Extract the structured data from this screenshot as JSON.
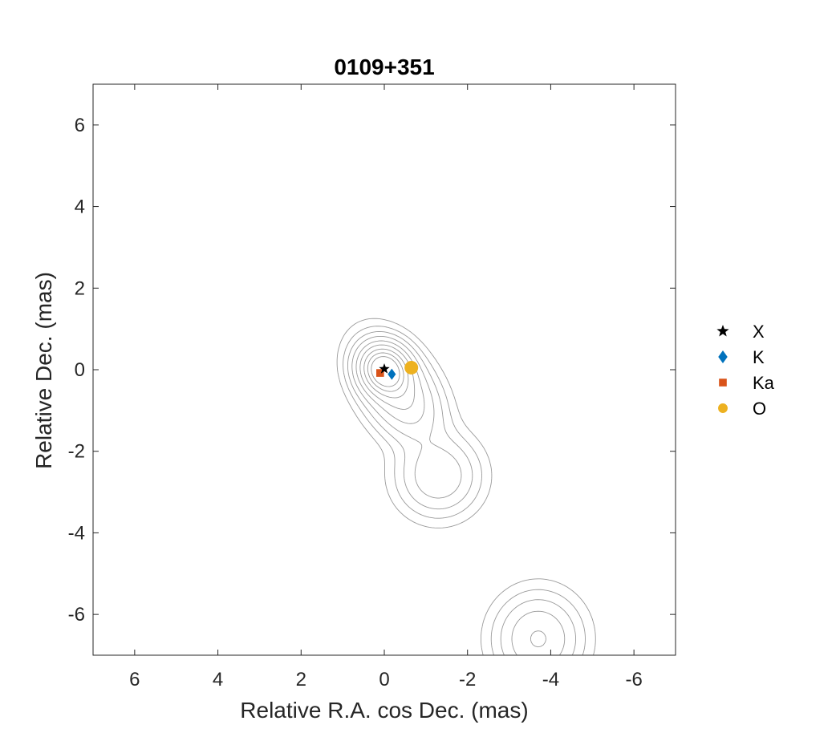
{
  "chart_data": {
    "type": "scatter",
    "title": "0109+351",
    "xlabel": "Relative R.A. cos Dec. (mas)",
    "ylabel": "Relative Dec. (mas)",
    "xlim": [
      7,
      -7
    ],
    "ylim": [
      -7,
      7
    ],
    "x_reversed": true,
    "x_ticks": [
      6,
      4,
      2,
      0,
      -2,
      -4,
      -6
    ],
    "y_ticks": [
      -6,
      -4,
      -2,
      0,
      2,
      4,
      6
    ],
    "x_tick_labels": [
      "6",
      "4",
      "2",
      "0",
      "-2",
      "-4",
      "-6"
    ],
    "y_tick_labels": [
      "-6",
      "-4",
      "-2",
      "0",
      "2",
      "4",
      "6"
    ],
    "grid": false,
    "legend_position": "right",
    "contour_color": "#9a9a9a",
    "contour_levels": [
      0.012,
      0.03,
      0.06,
      0.11,
      0.19,
      0.3,
      0.45,
      0.62,
      0.8
    ],
    "contour_components": [
      {
        "x": 0.0,
        "y": 0.0,
        "amp": 1.0,
        "sx": 0.32,
        "sy": 0.36,
        "theta": -0.6
      },
      {
        "x": -0.35,
        "y": -0.55,
        "amp": 0.35,
        "sx": 0.45,
        "sy": 0.75,
        "theta": -0.55
      },
      {
        "x": -1.3,
        "y": -2.6,
        "amp": 0.18,
        "sx": 0.55,
        "sy": 0.55,
        "theta": 0
      },
      {
        "x": -3.7,
        "y": -6.6,
        "amp": 0.2,
        "sx": 0.58,
        "sy": 0.62,
        "theta": 0
      }
    ],
    "series": [
      {
        "name": "X",
        "marker": "star",
        "color": "#000000",
        "points": [
          [
            0.0,
            0.02
          ]
        ]
      },
      {
        "name": "K",
        "marker": "diamond",
        "color": "#0072BD",
        "points": [
          [
            -0.18,
            -0.11
          ]
        ]
      },
      {
        "name": "Ka",
        "marker": "square",
        "color": "#D95319",
        "points": [
          [
            0.1,
            -0.08
          ]
        ]
      },
      {
        "name": "O",
        "marker": "circle",
        "color": "#EDB120",
        "points": [
          [
            -0.65,
            0.05
          ]
        ]
      }
    ]
  }
}
